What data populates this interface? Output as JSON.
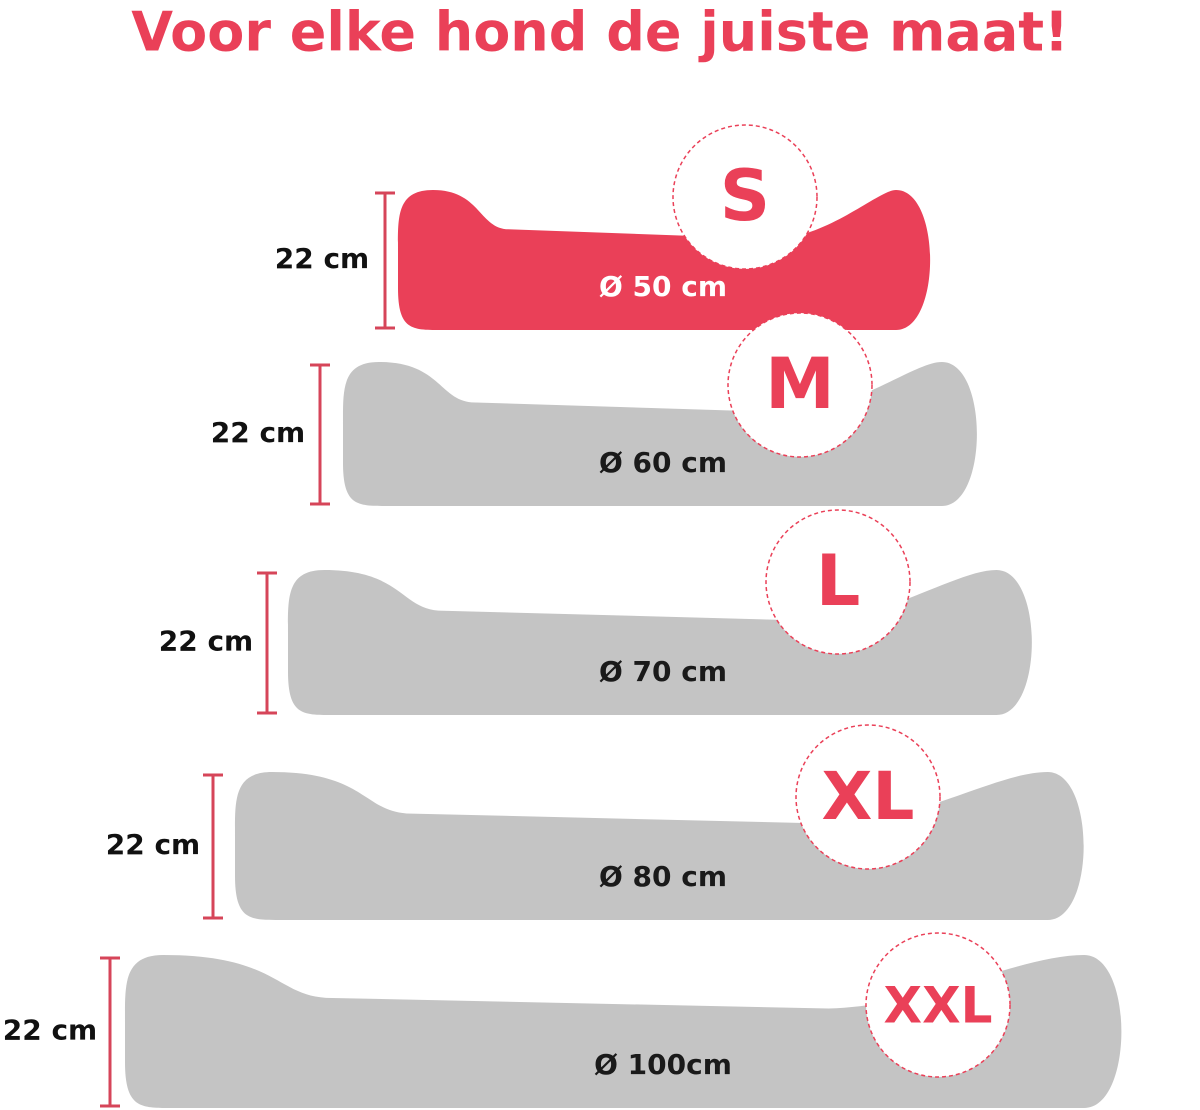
{
  "title": "Voor elke hond de juiste maat!",
  "beds": [
    {
      "size": "S",
      "height": "22 cm",
      "diameter": "Ø 50 cm"
    },
    {
      "size": "M",
      "height": "22 cm",
      "diameter": "Ø 60 cm"
    },
    {
      "size": "L",
      "height": "22 cm",
      "diameter": "Ø 70 cm"
    },
    {
      "size": "XL",
      "height": "22 cm",
      "diameter": "Ø 80 cm"
    },
    {
      "size": "XXL",
      "height": "22 cm",
      "diameter": "Ø 100cm"
    }
  ]
}
